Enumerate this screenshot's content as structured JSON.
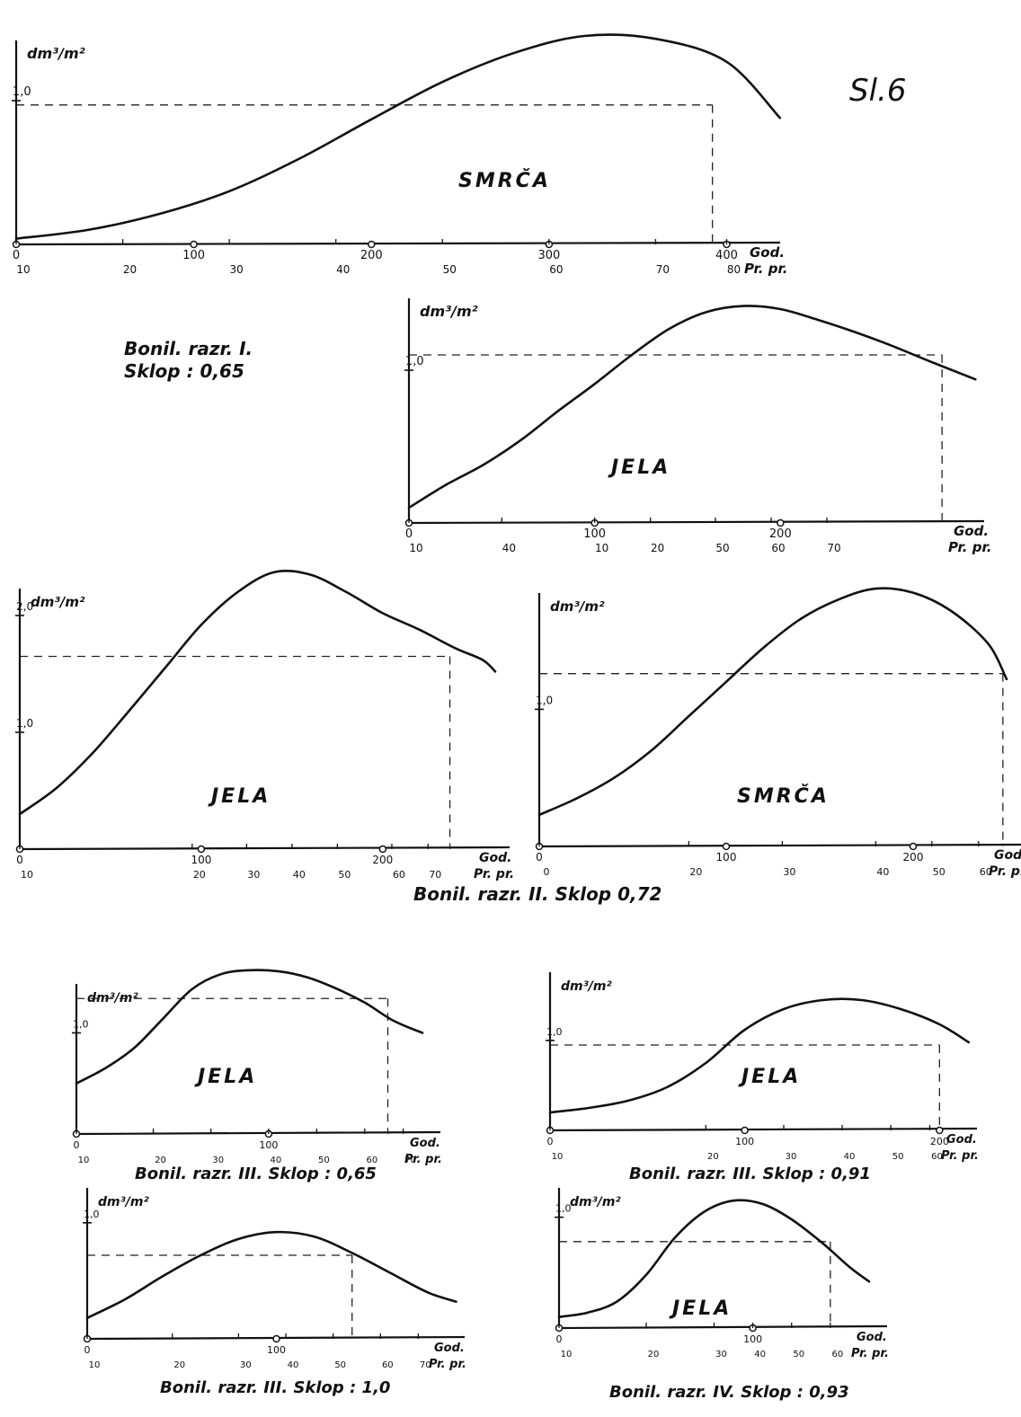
{
  "figure": {
    "label": "Sl.6"
  },
  "captions": {
    "bonil_1": "Bonil. razr. I.",
    "sklop_1": "Sklop : 0,65",
    "bonil_2": "Bonil. razr. II. Sklop 0,72"
  },
  "chart_data": [
    {
      "id": "p1",
      "type": "line",
      "title": "SMRČA",
      "ylabel": "dm³/m²",
      "xlabel_top": "God.",
      "xlabel_bottom": "Pr. pr.",
      "ylim": [
        0,
        1.45
      ],
      "xlim": [
        0,
        420
      ],
      "y_ticks": [
        {
          "v": 1.0,
          "label": "1,0"
        }
      ],
      "x_ticks_top": [
        {
          "v": 0,
          "label": "0"
        },
        {
          "v": 100,
          "label": "100"
        },
        {
          "v": 200,
          "label": "200"
        },
        {
          "v": 300,
          "label": "300"
        },
        {
          "v": 400,
          "label": "400"
        }
      ],
      "x_ticks_bottom": [
        {
          "v": 0,
          "label": "10"
        },
        {
          "v": 60,
          "label": "20"
        },
        {
          "v": 120,
          "label": "30"
        },
        {
          "v": 180,
          "label": "40"
        },
        {
          "v": 240,
          "label": "50"
        },
        {
          "v": 300,
          "label": "60"
        },
        {
          "v": 360,
          "label": "70"
        },
        {
          "v": 400,
          "label": "80"
        }
      ],
      "x": [
        0,
        40,
        80,
        120,
        160,
        200,
        240,
        280,
        320,
        360,
        400,
        430
      ],
      "y": [
        0.04,
        0.1,
        0.21,
        0.37,
        0.6,
        0.87,
        1.13,
        1.33,
        1.45,
        1.43,
        1.27,
        0.88
      ],
      "ref_x": 392,
      "ref_y": 0.97,
      "font": 14
    },
    {
      "id": "p2",
      "type": "line",
      "title": "JELA",
      "ylabel": "dm³/m²",
      "xlabel_top": "God.",
      "xlabel_bottom": "Pr. pr.",
      "ylim": [
        0,
        1.5
      ],
      "xlim": [
        0,
        300
      ],
      "y_ticks": [
        {
          "v": 1.0,
          "label": "1,0"
        }
      ],
      "x_ticks_top": [
        {
          "v": 0,
          "label": "0"
        },
        {
          "v": 100,
          "label": "100"
        },
        {
          "v": 200,
          "label": "200"
        }
      ],
      "x_ticks_bottom": [
        {
          "v": 0,
          "label": "10"
        },
        {
          "v": 50,
          "label": "40"
        },
        {
          "v": 100,
          "label": "10"
        },
        {
          "v": 130,
          "label": "20"
        },
        {
          "v": 165,
          "label": "50"
        },
        {
          "v": 195,
          "label": "60"
        },
        {
          "v": 225,
          "label": "70"
        }
      ],
      "x": [
        0,
        20,
        40,
        60,
        80,
        100,
        120,
        140,
        160,
        180,
        200,
        220,
        240,
        260,
        280,
        305
      ],
      "y": [
        0.1,
        0.25,
        0.38,
        0.54,
        0.73,
        0.91,
        1.1,
        1.27,
        1.38,
        1.42,
        1.4,
        1.33,
        1.25,
        1.16,
        1.06,
        0.94
      ],
      "ref_x": 287,
      "ref_y": 1.1,
      "font": 14
    },
    {
      "id": "p3",
      "type": "line",
      "title": "JELA",
      "ylabel": "dm³/m²",
      "xlabel_top": "God.",
      "xlabel_bottom": "Pr. pr.",
      "ylim": [
        0,
        2.4
      ],
      "xlim": [
        0,
        260
      ],
      "y_ticks": [
        {
          "v": 1.0,
          "label": "1,0"
        },
        {
          "v": 2.0,
          "label": "2,0"
        }
      ],
      "x_ticks_top": [
        {
          "v": 0,
          "label": "0"
        },
        {
          "v": 100,
          "label": "100"
        },
        {
          "v": 200,
          "label": "200"
        }
      ],
      "x_ticks_bottom": [
        {
          "v": 0,
          "label": "10"
        },
        {
          "v": 95,
          "label": "20"
        },
        {
          "v": 125,
          "label": "30"
        },
        {
          "v": 150,
          "label": "40"
        },
        {
          "v": 175,
          "label": "50"
        },
        {
          "v": 205,
          "label": "60"
        },
        {
          "v": 225,
          "label": "70"
        }
      ],
      "x": [
        0,
        20,
        40,
        60,
        80,
        100,
        120,
        140,
        160,
        180,
        200,
        220,
        240,
        255,
        262
      ],
      "y": [
        0.3,
        0.52,
        0.82,
        1.18,
        1.55,
        1.92,
        2.2,
        2.37,
        2.35,
        2.2,
        2.02,
        1.88,
        1.72,
        1.62,
        1.52
      ],
      "ref_x": 237,
      "ref_y": 1.65,
      "font": 13
    },
    {
      "id": "p4",
      "type": "line",
      "title": "SMRČA",
      "ylabel": "dm³/m²",
      "xlabel_top": "God.",
      "xlabel_bottom": "Pr. pr.",
      "ylim": [
        0,
        1.9
      ],
      "xlim": [
        0,
        250
      ],
      "y_ticks": [
        {
          "v": 1.0,
          "label": "1,0"
        }
      ],
      "x_ticks_top": [
        {
          "v": 0,
          "label": "0"
        },
        {
          "v": 100,
          "label": "100"
        },
        {
          "v": 200,
          "label": "200"
        }
      ],
      "x_ticks_bottom": [
        {
          "v": 0,
          "label": "0"
        },
        {
          "v": 80,
          "label": "20"
        },
        {
          "v": 130,
          "label": "30"
        },
        {
          "v": 180,
          "label": "40"
        },
        {
          "v": 210,
          "label": "50"
        },
        {
          "v": 235,
          "label": "60"
        }
      ],
      "x": [
        0,
        20,
        40,
        60,
        80,
        100,
        120,
        140,
        160,
        180,
        200,
        220,
        240,
        250
      ],
      "y": [
        0.23,
        0.35,
        0.5,
        0.7,
        0.95,
        1.2,
        1.45,
        1.66,
        1.8,
        1.88,
        1.85,
        1.72,
        1.48,
        1.22
      ],
      "ref_x": 248,
      "ref_y": 1.26,
      "font": 13
    },
    {
      "id": "p5",
      "type": "line",
      "title": "JELA",
      "ylabel": "dm³/m²",
      "xlabel_top": "God.",
      "xlabel_bottom": "Pr. pr.",
      "caption": "Bonil. razr. III. Sklop : 0,65",
      "ylim": [
        0,
        1.6
      ],
      "xlim": [
        0,
        180
      ],
      "y_ticks": [
        {
          "v": 1.0,
          "label": "1,0"
        }
      ],
      "x_ticks_top": [
        {
          "v": 0,
          "label": "0"
        },
        {
          "v": 100,
          "label": "100"
        }
      ],
      "x_ticks_bottom": [
        {
          "v": 0,
          "label": "10"
        },
        {
          "v": 40,
          "label": "20"
        },
        {
          "v": 70,
          "label": "30"
        },
        {
          "v": 100,
          "label": "40"
        },
        {
          "v": 125,
          "label": "50"
        },
        {
          "v": 150,
          "label": "60"
        },
        {
          "v": 170,
          "label": "70"
        }
      ],
      "x": [
        0,
        15,
        30,
        45,
        60,
        75,
        90,
        105,
        120,
        135,
        150,
        165,
        180
      ],
      "y": [
        0.5,
        0.65,
        0.85,
        1.14,
        1.43,
        1.58,
        1.62,
        1.61,
        1.55,
        1.44,
        1.3,
        1.12,
        1.0
      ],
      "ref_x": 162,
      "ref_y": 1.34,
      "font": 12
    },
    {
      "id": "p6",
      "type": "line",
      "title": "JELA",
      "ylabel": "dm³/m²",
      "xlabel_top": "God.",
      "xlabel_bottom": "Pr. pr.",
      "caption": "Bonil. razr. III. Sklop : 0,91",
      "ylim": [
        0,
        1.5
      ],
      "xlim": [
        0,
        210
      ],
      "y_ticks": [
        {
          "v": 1.0,
          "label": "1,0"
        }
      ],
      "x_ticks_top": [
        {
          "v": 0,
          "label": "0"
        },
        {
          "v": 100,
          "label": "100"
        },
        {
          "v": 200,
          "label": "200"
        }
      ],
      "x_ticks_bottom": [
        {
          "v": 0,
          "label": "10"
        },
        {
          "v": 80,
          "label": "20"
        },
        {
          "v": 120,
          "label": "30"
        },
        {
          "v": 150,
          "label": "40"
        },
        {
          "v": 175,
          "label": "50"
        },
        {
          "v": 195,
          "label": "60"
        }
      ],
      "x": [
        0,
        20,
        40,
        60,
        80,
        100,
        120,
        140,
        160,
        180,
        200,
        215
      ],
      "y": [
        0.2,
        0.25,
        0.33,
        0.48,
        0.75,
        1.12,
        1.35,
        1.45,
        1.45,
        1.35,
        1.18,
        0.98
      ],
      "ref_x": 200,
      "ref_y": 0.95,
      "font": 12
    },
    {
      "id": "p7",
      "type": "line",
      "title": "",
      "ylabel": "dm³/m²",
      "xlabel_top": "God.",
      "xlabel_bottom": "Pr. pr.",
      "caption": "Bonil. razr. III. Sklop : 1,0",
      "ylim": [
        0,
        1.2
      ],
      "xlim": [
        0,
        190
      ],
      "y_ticks": [
        {
          "v": 1.0,
          "label": "1,0"
        }
      ],
      "x_ticks_top": [
        {
          "v": 0,
          "label": "0"
        },
        {
          "v": 100,
          "label": "100"
        }
      ],
      "x_ticks_bottom": [
        {
          "v": 0,
          "label": "10"
        },
        {
          "v": 45,
          "label": "20"
        },
        {
          "v": 80,
          "label": "30"
        },
        {
          "v": 105,
          "label": "40"
        },
        {
          "v": 130,
          "label": "50"
        },
        {
          "v": 155,
          "label": "60"
        },
        {
          "v": 175,
          "label": "70"
        }
      ],
      "x": [
        0,
        20,
        40,
        60,
        80,
        100,
        120,
        140,
        160,
        180,
        195
      ],
      "y": [
        0.18,
        0.34,
        0.54,
        0.72,
        0.86,
        0.92,
        0.88,
        0.74,
        0.57,
        0.4,
        0.32
      ],
      "ref_x": 140,
      "ref_y": 0.72,
      "font": 12
    },
    {
      "id": "p8",
      "type": "line",
      "title": "JELA",
      "ylabel": "dm³/m²",
      "xlabel_top": "God.",
      "xlabel_bottom": "Pr. pr.",
      "caption": "Bonil. razr. IV. Sklop : 0,93",
      "ylim": [
        0,
        1.2
      ],
      "xlim": [
        0,
        160
      ],
      "y_ticks": [
        {
          "v": 1.0,
          "label": "1,0"
        }
      ],
      "x_ticks_top": [
        {
          "v": 0,
          "label": "0"
        },
        {
          "v": 100,
          "label": "100"
        }
      ],
      "x_ticks_bottom": [
        {
          "v": 0,
          "label": "10"
        },
        {
          "v": 45,
          "label": "20"
        },
        {
          "v": 80,
          "label": "30"
        },
        {
          "v": 100,
          "label": "40"
        },
        {
          "v": 120,
          "label": "50"
        },
        {
          "v": 140,
          "label": "60"
        }
      ],
      "x": [
        0,
        15,
        30,
        45,
        60,
        75,
        90,
        105,
        120,
        135,
        150,
        160
      ],
      "y": [
        0.1,
        0.14,
        0.24,
        0.48,
        0.82,
        1.05,
        1.15,
        1.12,
        0.98,
        0.78,
        0.55,
        0.42
      ],
      "ref_x": 140,
      "ref_y": 0.78,
      "font": 12
    }
  ]
}
